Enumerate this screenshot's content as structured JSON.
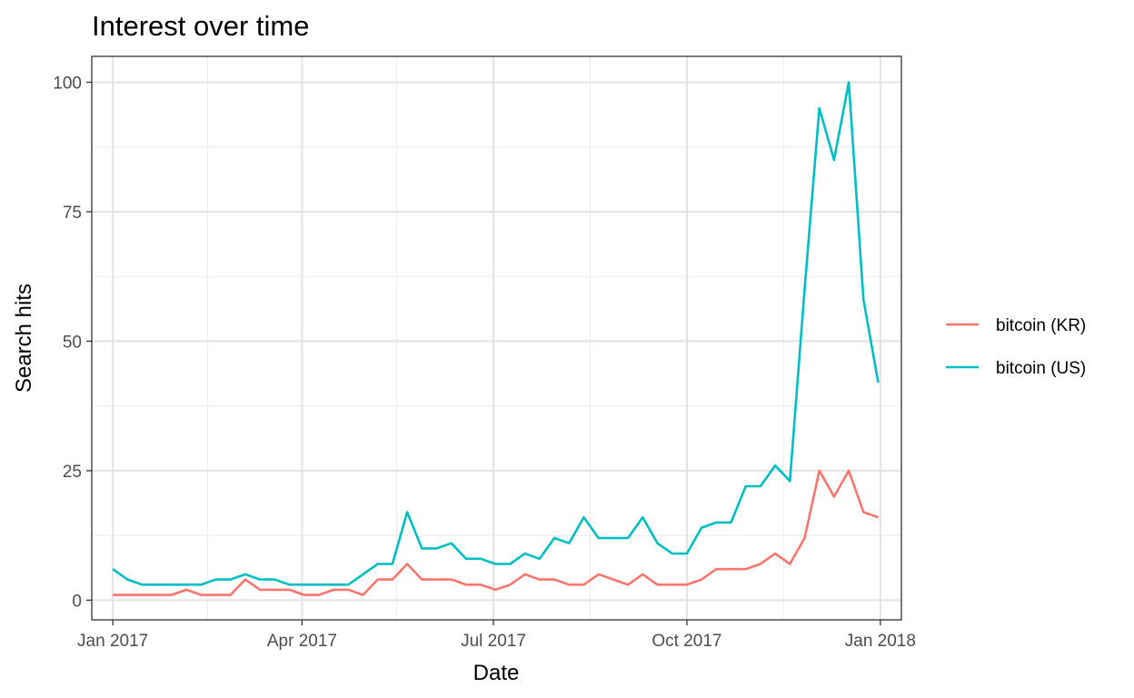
{
  "chart_data": {
    "type": "line",
    "title": "Interest over time",
    "xlabel": "Date",
    "ylabel": "Search hits",
    "ylim": [
      -3.8,
      105
    ],
    "xlim": [
      "2016-12-22",
      "2018-01-11"
    ],
    "grid": true,
    "legend_position": "right",
    "x_ticks": [
      {
        "date": "2017-01-01",
        "label": "Jan 2017"
      },
      {
        "date": "2017-04-01",
        "label": "Apr 2017"
      },
      {
        "date": "2017-07-01",
        "label": "Jul 2017"
      },
      {
        "date": "2017-10-01",
        "label": "Oct 2017"
      },
      {
        "date": "2018-01-01",
        "label": "Jan 2018"
      }
    ],
    "x_minor": [
      "2017-02-15",
      "2017-05-16",
      "2017-08-16",
      "2017-11-16"
    ],
    "y_ticks": [
      0,
      25,
      50,
      75,
      100
    ],
    "y_minor": [
      12.5,
      37.5,
      62.5,
      87.5
    ],
    "x": [
      "2017-01-01",
      "2017-01-08",
      "2017-01-15",
      "2017-01-22",
      "2017-01-29",
      "2017-02-05",
      "2017-02-12",
      "2017-02-19",
      "2017-02-26",
      "2017-03-05",
      "2017-03-12",
      "2017-03-19",
      "2017-03-26",
      "2017-04-02",
      "2017-04-09",
      "2017-04-16",
      "2017-04-23",
      "2017-04-30",
      "2017-05-07",
      "2017-05-14",
      "2017-05-21",
      "2017-05-28",
      "2017-06-04",
      "2017-06-11",
      "2017-06-18",
      "2017-06-25",
      "2017-07-02",
      "2017-07-09",
      "2017-07-16",
      "2017-07-23",
      "2017-07-30",
      "2017-08-06",
      "2017-08-13",
      "2017-08-20",
      "2017-08-27",
      "2017-09-03",
      "2017-09-10",
      "2017-09-17",
      "2017-09-24",
      "2017-10-01",
      "2017-10-08",
      "2017-10-15",
      "2017-10-22",
      "2017-10-29",
      "2017-11-05",
      "2017-11-12",
      "2017-11-19",
      "2017-11-26",
      "2017-12-03",
      "2017-12-10",
      "2017-12-17",
      "2017-12-24",
      "2017-12-31"
    ],
    "series": [
      {
        "name": "bitcoin (KR)",
        "color": "#F8766D",
        "values": [
          1,
          1,
          1,
          1,
          1,
          2,
          1,
          1,
          1,
          4,
          2,
          2,
          2,
          1,
          1,
          2,
          2,
          1,
          4,
          4,
          7,
          4,
          4,
          4,
          3,
          3,
          2,
          3,
          5,
          4,
          4,
          3,
          3,
          5,
          4,
          3,
          5,
          3,
          3,
          3,
          4,
          6,
          6,
          6,
          7,
          9,
          7,
          12,
          25,
          20,
          25,
          17,
          16
        ]
      },
      {
        "name": "bitcoin (US)",
        "color": "#00BFC4",
        "values": [
          6,
          4,
          3,
          3,
          3,
          3,
          3,
          4,
          4,
          5,
          4,
          4,
          3,
          3,
          3,
          3,
          3,
          5,
          7,
          7,
          17,
          10,
          10,
          11,
          8,
          8,
          7,
          7,
          9,
          8,
          12,
          11,
          16,
          12,
          12,
          12,
          16,
          11,
          9,
          9,
          14,
          15,
          15,
          22,
          22,
          26,
          23,
          60,
          95,
          85,
          100,
          58,
          42
        ]
      }
    ]
  }
}
